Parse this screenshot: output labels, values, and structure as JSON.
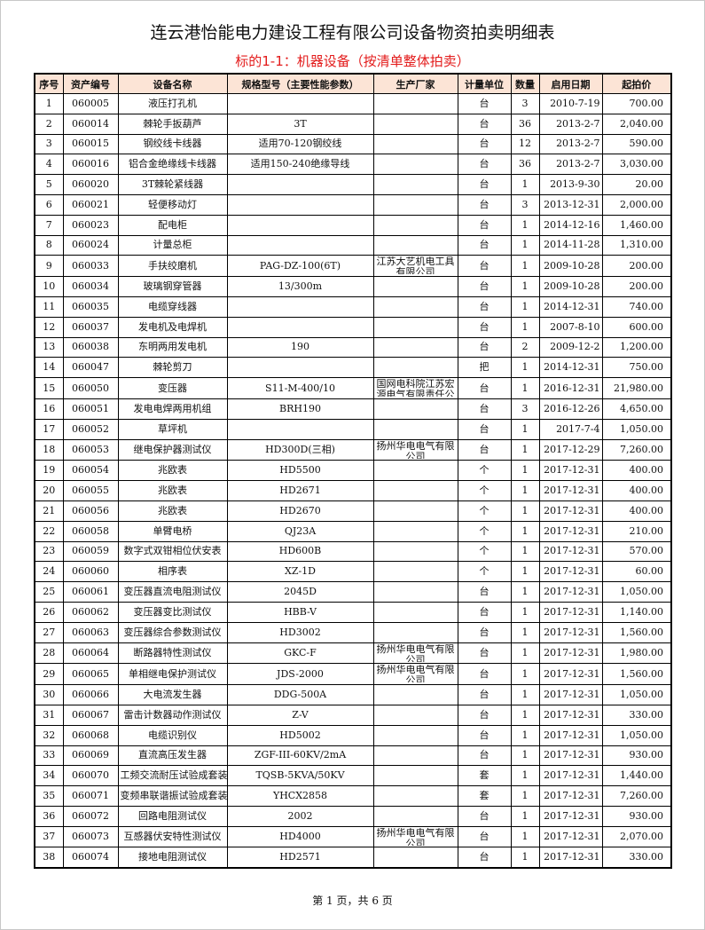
{
  "title": "连云港怡能电力建设工程有限公司设备物资拍卖明细表",
  "subtitle": "标的1-1：机器设备（按清单整体拍卖）",
  "headers": [
    "序号",
    "资产编号",
    "设备名称",
    "规格型号（主要性能参数）",
    "生产厂家",
    "计量单位",
    "数量",
    "启用日期",
    "起拍价"
  ],
  "rows": [
    [
      "1",
      "060005",
      "液压打孔机",
      "",
      "",
      "台",
      "3",
      "2010-7-19",
      "700.00"
    ],
    [
      "2",
      "060014",
      "棘轮手扳葫芦",
      "3T",
      "",
      "台",
      "36",
      "2013-2-7",
      "2,040.00"
    ],
    [
      "3",
      "060015",
      "钢绞线卡线器",
      "适用70-120钢绞线",
      "",
      "台",
      "12",
      "2013-2-7",
      "590.00"
    ],
    [
      "4",
      "060016",
      "铝合金绝缘线卡线器",
      "适用150-240绝缘导线",
      "",
      "台",
      "36",
      "2013-2-7",
      "3,030.00"
    ],
    [
      "5",
      "060020",
      "3T棘轮紧线器",
      "",
      "",
      "台",
      "1",
      "2013-9-30",
      "20.00"
    ],
    [
      "6",
      "060021",
      "轻便移动灯",
      "",
      "",
      "台",
      "3",
      "2013-12-31",
      "2,000.00"
    ],
    [
      "7",
      "060023",
      "配电柜",
      "",
      "",
      "台",
      "1",
      "2014-12-16",
      "1,460.00"
    ],
    [
      "8",
      "060024",
      "计量总柜",
      "",
      "",
      "台",
      "1",
      "2014-11-28",
      "1,310.00"
    ],
    [
      "9",
      "060033",
      "手扶绞磨机",
      "PAG-DZ-100(6T)",
      "江苏大艺机电工具有限公司",
      "台",
      "1",
      "2009-10-28",
      "200.00"
    ],
    [
      "10",
      "060034",
      "玻璃钢穿管器",
      "13/300m",
      "",
      "台",
      "1",
      "2009-10-28",
      "200.00"
    ],
    [
      "11",
      "060035",
      "电缆穿线器",
      "",
      "",
      "台",
      "1",
      "2014-12-31",
      "740.00"
    ],
    [
      "12",
      "060037",
      "发电机及电焊机",
      "",
      "",
      "台",
      "1",
      "2007-8-10",
      "600.00"
    ],
    [
      "13",
      "060038",
      "东明两用发电机",
      "190",
      "",
      "台",
      "2",
      "2009-12-2",
      "1,200.00"
    ],
    [
      "14",
      "060047",
      "棘轮剪刀",
      "",
      "",
      "把",
      "1",
      "2014-12-31",
      "750.00"
    ],
    [
      "15",
      "060050",
      "变压器",
      "S11-M-400/10",
      "国网电科院江苏宏源电气有限责任公司",
      "台",
      "1",
      "2016-12-31",
      "21,980.00"
    ],
    [
      "16",
      "060051",
      "发电电焊两用机组",
      "BRH190",
      "",
      "台",
      "3",
      "2016-12-26",
      "4,650.00"
    ],
    [
      "17",
      "060052",
      "草坪机",
      "",
      "",
      "台",
      "1",
      "2017-7-4",
      "1,050.00"
    ],
    [
      "18",
      "060053",
      "继电保护器测试仪",
      "HD300D(三相)",
      "扬州华电电气有限公司",
      "台",
      "1",
      "2017-12-29",
      "7,260.00"
    ],
    [
      "19",
      "060054",
      "兆欧表",
      "HD5500",
      "",
      "个",
      "1",
      "2017-12-31",
      "400.00"
    ],
    [
      "20",
      "060055",
      "兆欧表",
      "HD2671",
      "",
      "个",
      "1",
      "2017-12-31",
      "400.00"
    ],
    [
      "21",
      "060056",
      "兆欧表",
      "HD2670",
      "",
      "个",
      "1",
      "2017-12-31",
      "400.00"
    ],
    [
      "22",
      "060058",
      "单臂电桥",
      "QJ23A",
      "",
      "个",
      "1",
      "2017-12-31",
      "210.00"
    ],
    [
      "23",
      "060059",
      "数字式双钳相位伏安表",
      "HD600B",
      "",
      "个",
      "1",
      "2017-12-31",
      "570.00"
    ],
    [
      "24",
      "060060",
      "相序表",
      "XZ-1D",
      "",
      "个",
      "1",
      "2017-12-31",
      "60.00"
    ],
    [
      "25",
      "060061",
      "变压器直流电阻测试仪",
      "2045D",
      "",
      "台",
      "1",
      "2017-12-31",
      "1,050.00"
    ],
    [
      "26",
      "060062",
      "变压器变比测试仪",
      "HBB-V",
      "",
      "台",
      "1",
      "2017-12-31",
      "1,140.00"
    ],
    [
      "27",
      "060063",
      "变压器综合参数测试仪",
      "HD3002",
      "",
      "台",
      "1",
      "2017-12-31",
      "1,560.00"
    ],
    [
      "28",
      "060064",
      "断路器特性测试仪",
      "GKC-F",
      "扬州华电电气有限公司",
      "台",
      "1",
      "2017-12-31",
      "1,980.00"
    ],
    [
      "29",
      "060065",
      "单相继电保护测试仪",
      "JDS-2000",
      "扬州华电电气有限公司",
      "台",
      "1",
      "2017-12-31",
      "1,560.00"
    ],
    [
      "30",
      "060066",
      "大电流发生器",
      "DDG-500A",
      "",
      "台",
      "1",
      "2017-12-31",
      "1,050.00"
    ],
    [
      "31",
      "060067",
      "雷击计数器动作测试仪",
      "Z-V",
      "",
      "台",
      "1",
      "2017-12-31",
      "330.00"
    ],
    [
      "32",
      "060068",
      "电缆识别仪",
      "HD5002",
      "",
      "台",
      "1",
      "2017-12-31",
      "1,050.00"
    ],
    [
      "33",
      "060069",
      "直流高压发生器",
      "ZGF-III-60KV/2mA",
      "",
      "台",
      "1",
      "2017-12-31",
      "930.00"
    ],
    [
      "34",
      "060070",
      "工频交流耐压试验成套装置",
      "TQSB-5KVA/50KV",
      "",
      "套",
      "1",
      "2017-12-31",
      "1,440.00"
    ],
    [
      "35",
      "060071",
      "变频串联谐振试验成套装置",
      "YHCX2858",
      "",
      "套",
      "1",
      "2017-12-31",
      "7,260.00"
    ],
    [
      "36",
      "060072",
      "回路电阻测试仪",
      "2002",
      "",
      "台",
      "1",
      "2017-12-31",
      "930.00"
    ],
    [
      "37",
      "060073",
      "互感器伏安特性测试仪",
      "HD4000",
      "扬州华电电气有限公司",
      "台",
      "1",
      "2017-12-31",
      "2,070.00"
    ],
    [
      "38",
      "060074",
      "接地电阻测试仪",
      "HD2571",
      "",
      "台",
      "1",
      "2017-12-31",
      "330.00"
    ]
  ],
  "footer": "第 1 页，共 6 页",
  "colors": {
    "header_bg": "#fce4d6",
    "subtitle": "#e31b1b"
  }
}
